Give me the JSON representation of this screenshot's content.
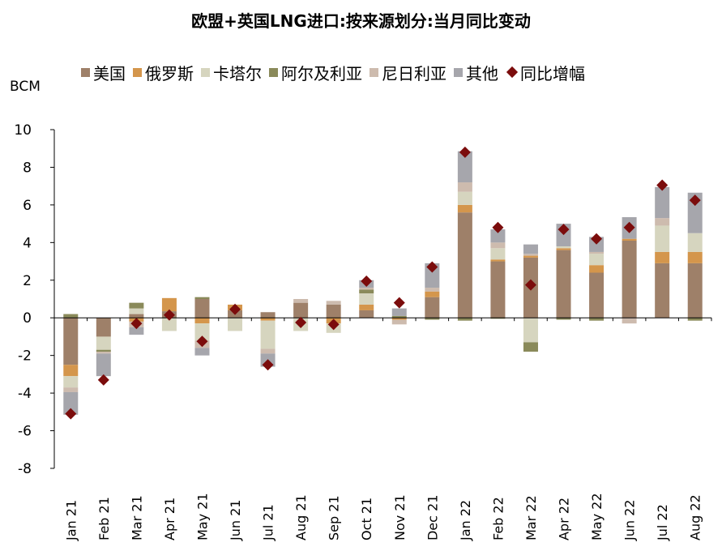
{
  "chart_data": {
    "type": "bar",
    "stacked": true,
    "title": "欧盟+英国LNG进口:按来源划分:当月同比变动",
    "unit_label": "BCM",
    "categories": [
      "Jan 21",
      "Feb 21",
      "Mar 21",
      "Apr 21",
      "May 21",
      "Jun 21",
      "Jul 21",
      "Aug 21",
      "Sep 21",
      "Oct 21",
      "Nov 21",
      "Dec 21",
      "Jan 22",
      "Feb 22",
      "Mar 22",
      "Apr 22",
      "May 22",
      "Jun 22",
      "Jul 22",
      "Aug 22"
    ],
    "ylim": [
      -8,
      10
    ],
    "yticks": [
      -8,
      -6,
      -4,
      -2,
      0,
      2,
      4,
      6,
      8,
      10
    ],
    "grid": false,
    "legend_position": "top",
    "series": [
      {
        "name": "美国",
        "color": "#9E8069",
        "values": [
          -2.5,
          -1.0,
          0.2,
          0.35,
          1.0,
          0.4,
          0.3,
          0.8,
          0.7,
          0.4,
          0.0,
          1.1,
          5.6,
          3.0,
          3.2,
          3.6,
          2.4,
          4.1,
          2.9,
          2.9
        ]
      },
      {
        "name": "俄罗斯",
        "color": "#D4964C",
        "values": [
          -0.6,
          0.0,
          -0.2,
          0.7,
          -0.3,
          0.3,
          -0.15,
          0.0,
          -0.3,
          0.3,
          -0.1,
          0.3,
          0.4,
          0.1,
          0.1,
          0.1,
          0.4,
          0.1,
          0.6,
          0.6
        ]
      },
      {
        "name": "卡塔尔",
        "color": "#D6D5BF",
        "values": [
          -0.6,
          -0.7,
          0.3,
          -0.7,
          -0.9,
          -0.7,
          -1.5,
          -0.7,
          -0.5,
          0.6,
          0.0,
          0.0,
          0.7,
          0.6,
          -1.3,
          0.1,
          0.6,
          0.0,
          1.4,
          1.0
        ]
      },
      {
        "name": "阿尔及利亚",
        "color": "#8A8A5A",
        "values": [
          0.2,
          -0.1,
          0.3,
          0.0,
          0.1,
          0.0,
          0.0,
          0.0,
          0.0,
          0.2,
          0.1,
          -0.1,
          -0.15,
          -0.05,
          -0.5,
          -0.1,
          -0.15,
          0.0,
          0.0,
          -0.15
        ]
      },
      {
        "name": "尼日利亚",
        "color": "#CDBBAE",
        "values": [
          -0.25,
          -0.1,
          -0.3,
          0.0,
          -0.4,
          0.0,
          -0.25,
          0.2,
          0.2,
          0.1,
          -0.25,
          0.2,
          0.5,
          0.3,
          0.1,
          0.0,
          0.1,
          -0.3,
          0.4,
          0.0
        ]
      },
      {
        "name": "其他",
        "color": "#A6A6AC",
        "values": [
          -1.2,
          -1.2,
          -0.4,
          0.0,
          -0.4,
          0.0,
          -0.7,
          0.0,
          0.0,
          0.4,
          0.4,
          1.3,
          1.65,
          0.7,
          0.5,
          1.2,
          0.8,
          1.15,
          1.65,
          2.15
        ]
      }
    ],
    "line_series": {
      "name": "同比增幅",
      "marker": "diamond",
      "color": "#7B0C0C",
      "values": [
        -5.1,
        -3.3,
        -0.3,
        0.15,
        -1.25,
        0.45,
        -2.5,
        -0.25,
        -0.35,
        1.95,
        0.8,
        2.7,
        8.8,
        4.8,
        1.75,
        4.7,
        4.2,
        4.8,
        7.05,
        6.25
      ]
    }
  }
}
